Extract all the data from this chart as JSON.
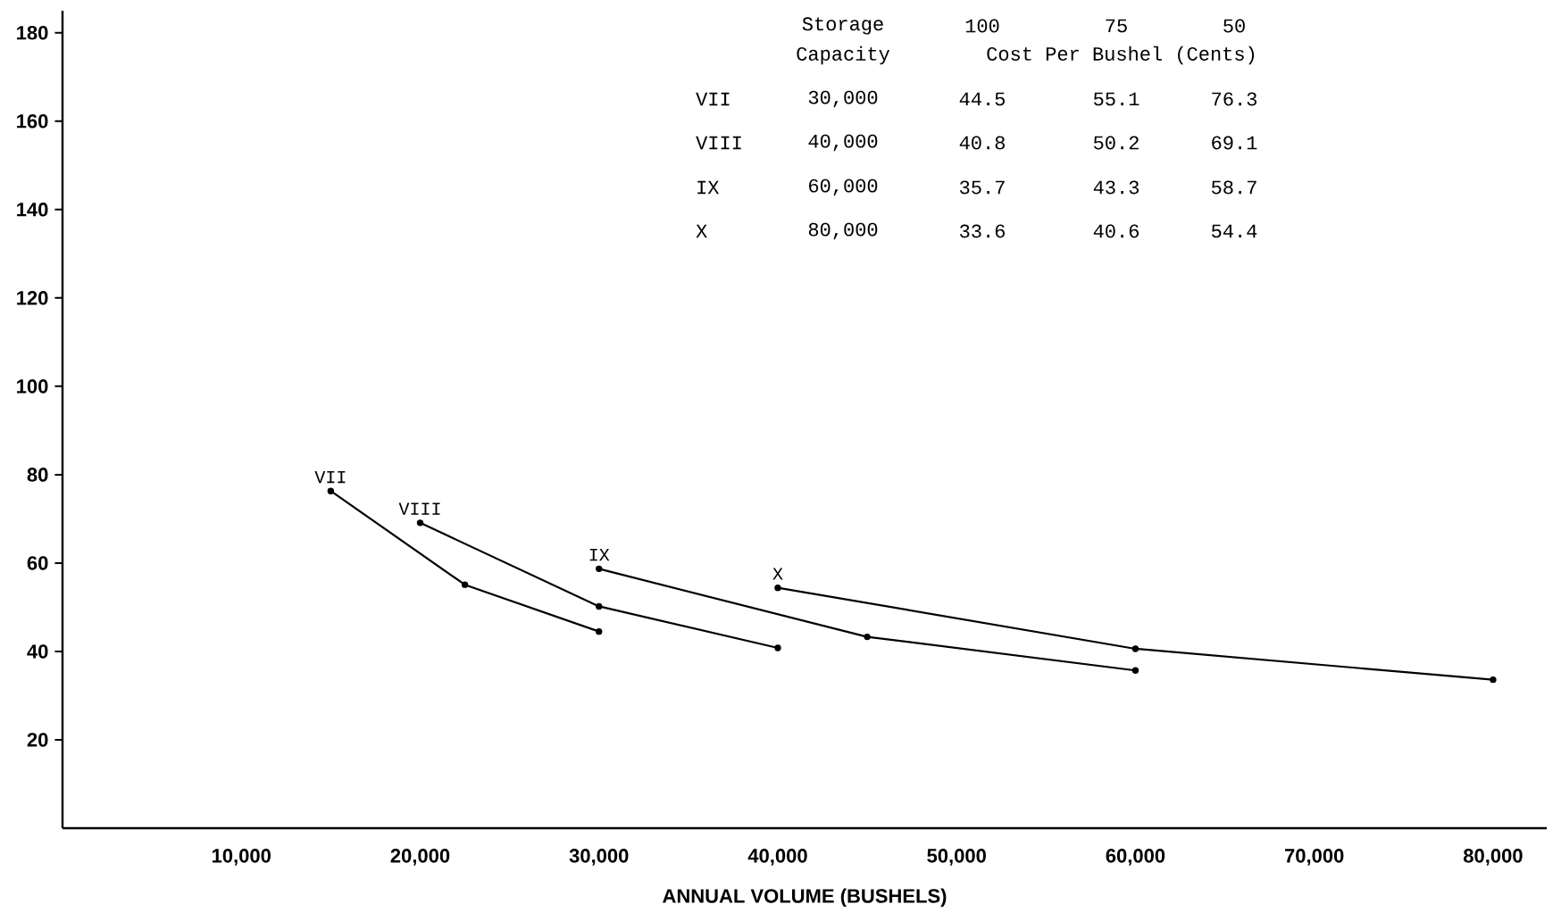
{
  "chart_data": {
    "type": "line",
    "xlabel": "ANNUAL VOLUME (BUSHELS)",
    "xlim": [
      0,
      83000
    ],
    "ylim": [
      0,
      185
    ],
    "xticks": [
      {
        "value": 10000,
        "label": "10,000"
      },
      {
        "value": 20000,
        "label": "20,000"
      },
      {
        "value": 30000,
        "label": "30,000"
      },
      {
        "value": 40000,
        "label": "40,000"
      },
      {
        "value": 50000,
        "label": "50,000"
      },
      {
        "value": 60000,
        "label": "60,000"
      },
      {
        "value": 70000,
        "label": "70,000"
      },
      {
        "value": 80000,
        "label": "80,000"
      }
    ],
    "yticks": [
      20,
      40,
      60,
      80,
      100,
      120,
      140,
      160,
      180
    ],
    "grid": false,
    "legend": false,
    "marker": "circle",
    "line_style": "solid",
    "series": [
      {
        "name": "VII",
        "color": "#000000",
        "x": [
          15000,
          22500,
          30000
        ],
        "values": [
          76.3,
          55.1,
          44.5
        ]
      },
      {
        "name": "VIII",
        "color": "#000000",
        "x": [
          20000,
          30000,
          40000
        ],
        "values": [
          69.1,
          50.2,
          40.8
        ]
      },
      {
        "name": "IX",
        "color": "#000000",
        "x": [
          30000,
          45000,
          60000
        ],
        "values": [
          58.7,
          43.3,
          35.7
        ]
      },
      {
        "name": "X",
        "color": "#000000",
        "x": [
          40000,
          60000,
          80000
        ],
        "values": [
          54.4,
          40.6,
          33.6
        ]
      }
    ],
    "annotations": [
      "Storage",
      "Capacity",
      "100",
      "75",
      "50",
      "Cost Per Bushel (Cents)",
      "30,000",
      "44.5",
      "55.1",
      "76.3",
      "40,000",
      "40.8",
      "50.2",
      "69.1",
      "60,000",
      "35.7",
      "43.3",
      "58.7",
      "80,000",
      "33.6",
      "40.6",
      "54.4"
    ]
  }
}
